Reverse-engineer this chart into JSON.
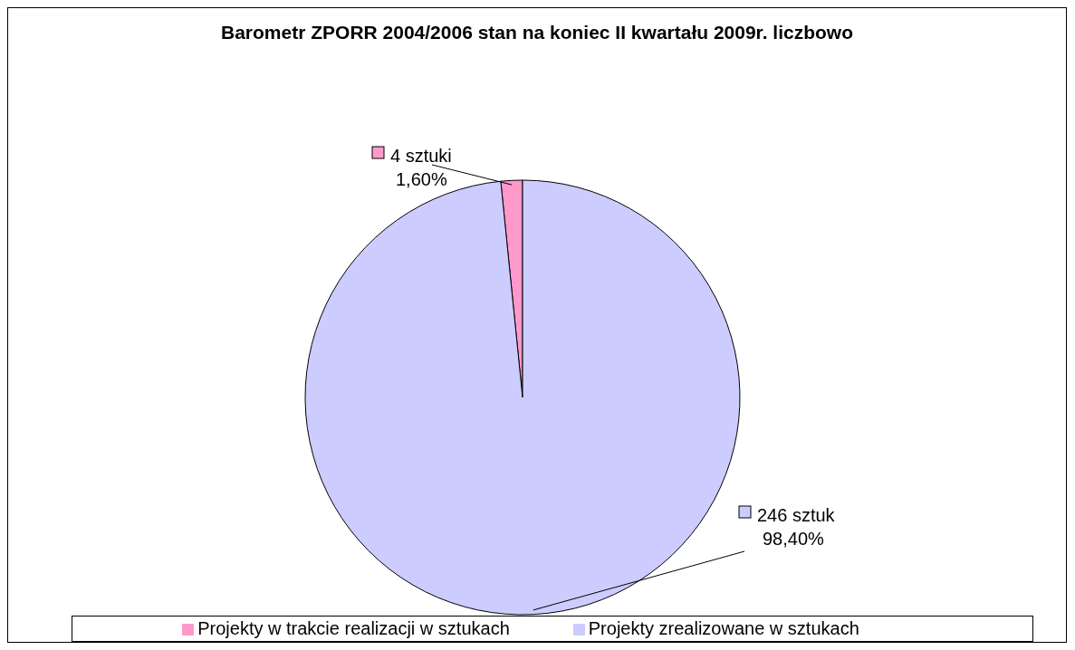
{
  "chart_data": {
    "type": "pie",
    "title": "Barometr ZPORR 2004/2006 stan na koniec II kwartału 2009r. liczbowo",
    "categories": [
      "Projekty w trakcie realizacji w sztukach",
      "Projekty zrealizowane w sztukach"
    ],
    "values": [
      4,
      246
    ],
    "colors": [
      "#ff99cc",
      "#ccccff"
    ],
    "value_labels": [
      "4 sztuki\n1,60%",
      "246 sztuk\n98,40%"
    ],
    "legend": "bottom"
  }
}
